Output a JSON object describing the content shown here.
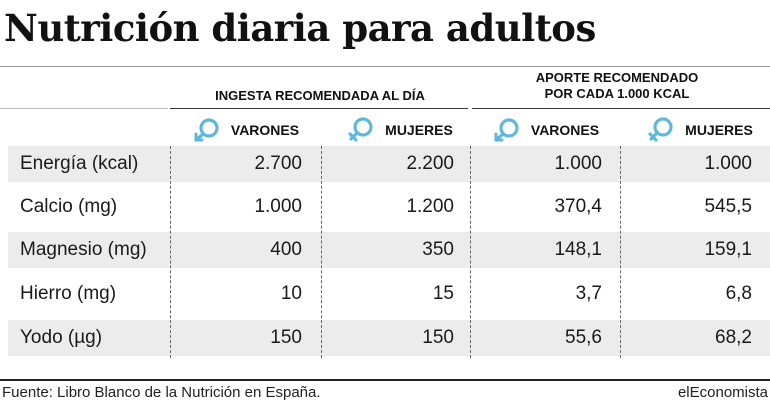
{
  "title": "Nutrición diaria para adultos",
  "header": {
    "group1": "INGESTA RECOMENDADA AL DÍA",
    "group2_line1": "APORTE RECOMENDADO",
    "group2_line2": "POR CADA 1.000 KCAL",
    "columns": [
      {
        "label": "VARONES",
        "icon": "male-symbol-icon"
      },
      {
        "label": "MUJERES",
        "icon": "female-symbol-icon"
      },
      {
        "label": "VARONES",
        "icon": "male-symbol-icon"
      },
      {
        "label": "MUJERES",
        "icon": "female-symbol-icon"
      }
    ]
  },
  "rows": [
    {
      "name": "Energía (kcal)",
      "values": [
        "2.700",
        "2.200",
        "1.000",
        "1.000"
      ]
    },
    {
      "name": "Calcio (mg)",
      "values": [
        "1.000",
        "1.200",
        "370,4",
        "545,5"
      ]
    },
    {
      "name": "Magnesio (mg)",
      "values": [
        "400",
        "350",
        "148,1",
        "159,1"
      ]
    },
    {
      "name": "Hierro (mg)",
      "values": [
        "10",
        "15",
        "3,7",
        "6,8"
      ]
    },
    {
      "name": "Yodo (µg)",
      "values": [
        "150",
        "150",
        "55,6",
        "68,2"
      ]
    }
  ],
  "footer": {
    "source": "Fuente: Libro Blanco de la Nutrición en España.",
    "brand": "elEconomista"
  },
  "colors": {
    "accent": "#5fb8d9",
    "shade": "#ececec"
  }
}
